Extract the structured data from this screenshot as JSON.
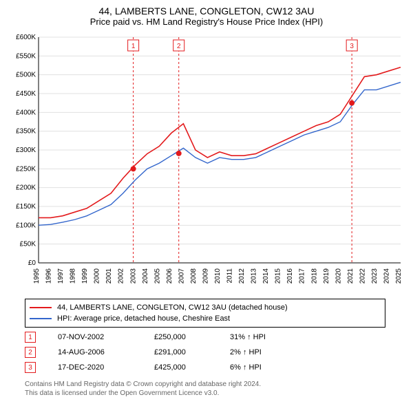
{
  "title": "44, LAMBERTS LANE, CONGLETON, CW12 3AU",
  "subtitle": "Price paid vs. HM Land Registry's House Price Index (HPI)",
  "chart": {
    "type": "line",
    "background_color": "#ffffff",
    "grid_color": "#e0e0e0",
    "axis_color": "#000000",
    "font_size_axis": 10,
    "x_years": [
      1995,
      1996,
      1997,
      1998,
      1999,
      2000,
      2001,
      2002,
      2003,
      2004,
      2005,
      2006,
      2007,
      2008,
      2009,
      2010,
      2011,
      2012,
      2013,
      2014,
      2015,
      2016,
      2017,
      2018,
      2019,
      2020,
      2021,
      2022,
      2023,
      2024,
      2025
    ],
    "ylim": [
      0,
      600000
    ],
    "ytick_step": 50000,
    "ytick_prefix": "£",
    "ytick_suffix": "K",
    "series": [
      {
        "name": "44, LAMBERTS LANE, CONGLETON, CW12 3AU (detached house)",
        "color": "#e31a1c",
        "line_width": 1.6,
        "values_by_year": {
          "1995": 120000,
          "1996": 120000,
          "1997": 125000,
          "1998": 135000,
          "1999": 145000,
          "2000": 165000,
          "2001": 185000,
          "2002": 225000,
          "2003": 260000,
          "2004": 290000,
          "2005": 310000,
          "2006": 345000,
          "2007": 370000,
          "2008": 300000,
          "2009": 280000,
          "2010": 295000,
          "2011": 285000,
          "2012": 285000,
          "2013": 290000,
          "2014": 305000,
          "2015": 320000,
          "2016": 335000,
          "2017": 350000,
          "2018": 365000,
          "2019": 375000,
          "2020": 395000,
          "2021": 445000,
          "2022": 495000,
          "2023": 500000,
          "2024": 510000,
          "2025": 520000
        }
      },
      {
        "name": "HPI: Average price, detached house, Cheshire East",
        "color": "#3366cc",
        "line_width": 1.4,
        "values_by_year": {
          "1995": 100000,
          "1996": 102000,
          "1997": 108000,
          "1998": 115000,
          "1999": 125000,
          "2000": 140000,
          "2001": 155000,
          "2002": 185000,
          "2003": 220000,
          "2004": 250000,
          "2005": 265000,
          "2006": 285000,
          "2007": 305000,
          "2008": 280000,
          "2009": 265000,
          "2010": 280000,
          "2011": 275000,
          "2012": 275000,
          "2013": 280000,
          "2014": 295000,
          "2015": 310000,
          "2016": 325000,
          "2017": 340000,
          "2018": 350000,
          "2019": 360000,
          "2020": 375000,
          "2021": 420000,
          "2022": 460000,
          "2023": 460000,
          "2024": 470000,
          "2025": 480000
        }
      }
    ],
    "markers": [
      {
        "num": "1",
        "year": 2002.85,
        "value": 250000,
        "color": "#e31a1c",
        "dash_color": "#e31a1c"
      },
      {
        "num": "2",
        "year": 2006.62,
        "value": 291000,
        "color": "#e31a1c",
        "dash_color": "#e31a1c"
      },
      {
        "num": "3",
        "year": 2020.96,
        "value": 425000,
        "color": "#e31a1c",
        "dash_color": "#e31a1c"
      }
    ]
  },
  "legend": [
    {
      "color": "#e31a1c",
      "label": "44, LAMBERTS LANE, CONGLETON, CW12 3AU (detached house)"
    },
    {
      "color": "#3366cc",
      "label": "HPI: Average price, detached house, Cheshire East"
    }
  ],
  "sales": [
    {
      "num": "1",
      "date": "07-NOV-2002",
      "price": "£250,000",
      "pct": "31% ↑ HPI"
    },
    {
      "num": "2",
      "date": "14-AUG-2006",
      "price": "£291,000",
      "pct": "2% ↑ HPI"
    },
    {
      "num": "3",
      "date": "17-DEC-2020",
      "price": "£425,000",
      "pct": "6% ↑ HPI"
    }
  ],
  "footer": {
    "line1": "Contains HM Land Registry data © Crown copyright and database right 2024.",
    "line2": "This data is licensed under the Open Government Licence v3.0."
  }
}
